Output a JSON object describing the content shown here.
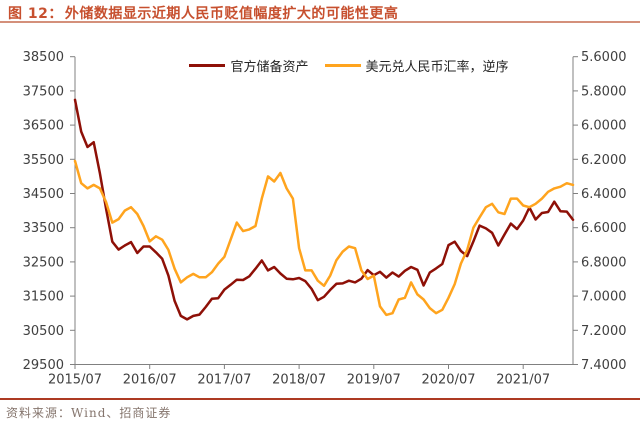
{
  "title": {
    "prefix": "图 12：",
    "text": "外储数据显示近期人民币贬值幅度扩大的可能性更高"
  },
  "source": {
    "label": "资料来源：Wind、招商证券"
  },
  "colors": {
    "title": "#c7502f",
    "title_rule": "#d4907b",
    "source_rule": "#ad3a23",
    "axis_line": "#808080",
    "axis_text": "#404040",
    "reserves_line": "#8e1007",
    "fx_line": "#ffa41e"
  },
  "chart_data": {
    "type": "line",
    "title": "外储数据显示近期人民币贬值幅度扩大的可能性更高",
    "x_start": "2015/07",
    "x_end": "2022/03",
    "x_tick_labels": [
      "2015/07",
      "2016/07",
      "2017/07",
      "2018/07",
      "2019/07",
      "2020/07",
      "2021/07"
    ],
    "x_tick_month_index": [
      0,
      12,
      24,
      36,
      48,
      60,
      72
    ],
    "left_axis": {
      "min": 29500,
      "max": 38500,
      "step": 1000,
      "tick_labels": [
        "38500",
        "37500",
        "36500",
        "35500",
        "34500",
        "33500",
        "32500",
        "31500",
        "30500",
        "29500"
      ]
    },
    "right_axis": {
      "min": 5.6,
      "max": 7.4,
      "step": 0.2,
      "reversed": true,
      "tick_labels": [
        "5.6000",
        "5.8000",
        "6.0000",
        "6.2000",
        "6.4000",
        "6.6000",
        "6.8000",
        "7.0000",
        "7.2000",
        "7.4000"
      ]
    },
    "legend_position": "top-center",
    "grid": false,
    "months": [
      "2015/07",
      "2015/08",
      "2015/09",
      "2015/10",
      "2015/11",
      "2015/12",
      "2016/01",
      "2016/02",
      "2016/03",
      "2016/04",
      "2016/05",
      "2016/06",
      "2016/07",
      "2016/08",
      "2016/09",
      "2016/10",
      "2016/11",
      "2016/12",
      "2017/01",
      "2017/02",
      "2017/03",
      "2017/04",
      "2017/05",
      "2017/06",
      "2017/07",
      "2017/08",
      "2017/09",
      "2017/10",
      "2017/11",
      "2017/12",
      "2018/01",
      "2018/02",
      "2018/03",
      "2018/04",
      "2018/05",
      "2018/06",
      "2018/07",
      "2018/08",
      "2018/09",
      "2018/10",
      "2018/11",
      "2018/12",
      "2019/01",
      "2019/02",
      "2019/03",
      "2019/04",
      "2019/05",
      "2019/06",
      "2019/07",
      "2019/08",
      "2019/09",
      "2019/10",
      "2019/11",
      "2019/12",
      "2020/01",
      "2020/02",
      "2020/03",
      "2020/04",
      "2020/05",
      "2020/06",
      "2020/07",
      "2020/08",
      "2020/09",
      "2020/10",
      "2020/11",
      "2020/12",
      "2021/01",
      "2021/02",
      "2021/03",
      "2021/04",
      "2021/05",
      "2021/06",
      "2021/07",
      "2021/08",
      "2021/09",
      "2021/10",
      "2021/11",
      "2021/12",
      "2022/01",
      "2022/02",
      "2022/03"
    ],
    "series": [
      {
        "name": "官方储备资产",
        "axis": "left",
        "color": "#8e1007",
        "values": [
          37240,
          36310,
          35860,
          36000,
          35090,
          34050,
          33090,
          32860,
          32980,
          33080,
          32760,
          32950,
          32950,
          32780,
          32590,
          32100,
          31360,
          30920,
          30820,
          30920,
          30960,
          31180,
          31420,
          31440,
          31690,
          31830,
          31980,
          31970,
          32080,
          32300,
          32540,
          32250,
          32350,
          32160,
          32010,
          31990,
          32030,
          31940,
          31710,
          31380,
          31480,
          31680,
          31860,
          31870,
          31950,
          31900,
          32010,
          32260,
          32110,
          32210,
          32040,
          32190,
          32070,
          32240,
          32350,
          32270,
          31810,
          32190,
          32310,
          32440,
          32990,
          33090,
          32820,
          32670,
          33100,
          33560,
          33480,
          33350,
          32980,
          33300,
          33620,
          33460,
          33710,
          34090,
          33740,
          33930,
          33960,
          34260,
          33980,
          33970,
          33730
        ]
      },
      {
        "name": "美元兑人民币汇率，逆序",
        "axis": "right",
        "color": "#ffa41e",
        "values": [
          6.21,
          6.34,
          6.37,
          6.35,
          6.37,
          6.45,
          6.57,
          6.55,
          6.5,
          6.48,
          6.52,
          6.59,
          6.68,
          6.65,
          6.67,
          6.73,
          6.84,
          6.92,
          6.89,
          6.87,
          6.89,
          6.89,
          6.86,
          6.81,
          6.77,
          6.67,
          6.57,
          6.62,
          6.61,
          6.59,
          6.43,
          6.3,
          6.33,
          6.28,
          6.37,
          6.43,
          6.72,
          6.85,
          6.85,
          6.91,
          6.94,
          6.88,
          6.79,
          6.74,
          6.71,
          6.72,
          6.85,
          6.9,
          6.88,
          7.06,
          7.11,
          7.1,
          7.02,
          7.01,
          6.92,
          6.99,
          7.02,
          7.07,
          7.1,
          7.08,
          7.01,
          6.93,
          6.81,
          6.73,
          6.6,
          6.54,
          6.48,
          6.46,
          6.51,
          6.52,
          6.43,
          6.43,
          6.47,
          6.48,
          6.46,
          6.43,
          6.39,
          6.37,
          6.36,
          6.34,
          6.35
        ]
      }
    ]
  }
}
